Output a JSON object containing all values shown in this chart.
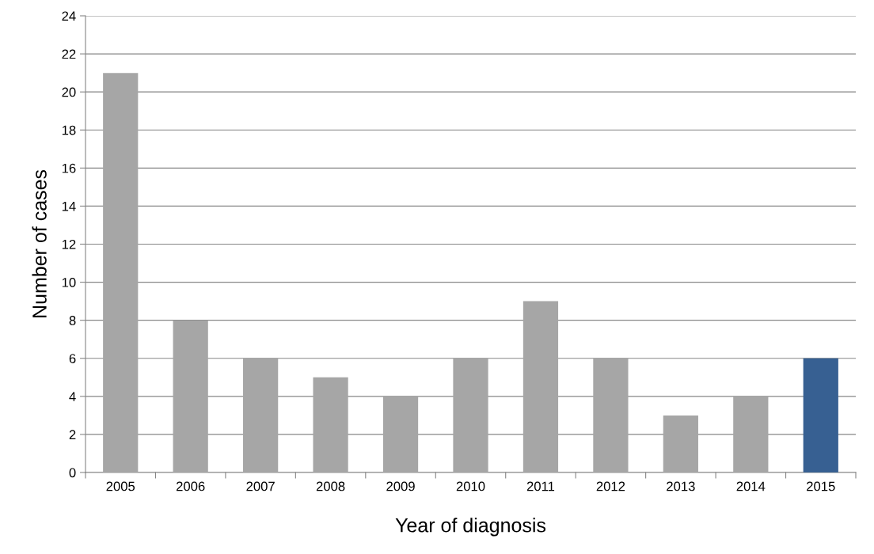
{
  "chart_data": {
    "type": "bar",
    "xlabel": "Year of diagnosis",
    "ylabel": "Number of cases",
    "categories": [
      "2005",
      "2006",
      "2007",
      "2008",
      "2009",
      "2010",
      "2011",
      "2012",
      "2013",
      "2014",
      "2015"
    ],
    "values": [
      21,
      8,
      6,
      5,
      4,
      6,
      9,
      6,
      3,
      4,
      6
    ],
    "colors": [
      "#a6a6a6",
      "#a6a6a6",
      "#a6a6a6",
      "#a6a6a6",
      "#a6a6a6",
      "#a6a6a6",
      "#a6a6a6",
      "#a6a6a6",
      "#a6a6a6",
      "#a6a6a6",
      "#376092"
    ],
    "ylim": [
      0,
      24
    ],
    "yticks": [
      0,
      2,
      4,
      6,
      8,
      10,
      12,
      14,
      16,
      18,
      20,
      22,
      24
    ],
    "grid": "y",
    "legend": false
  }
}
